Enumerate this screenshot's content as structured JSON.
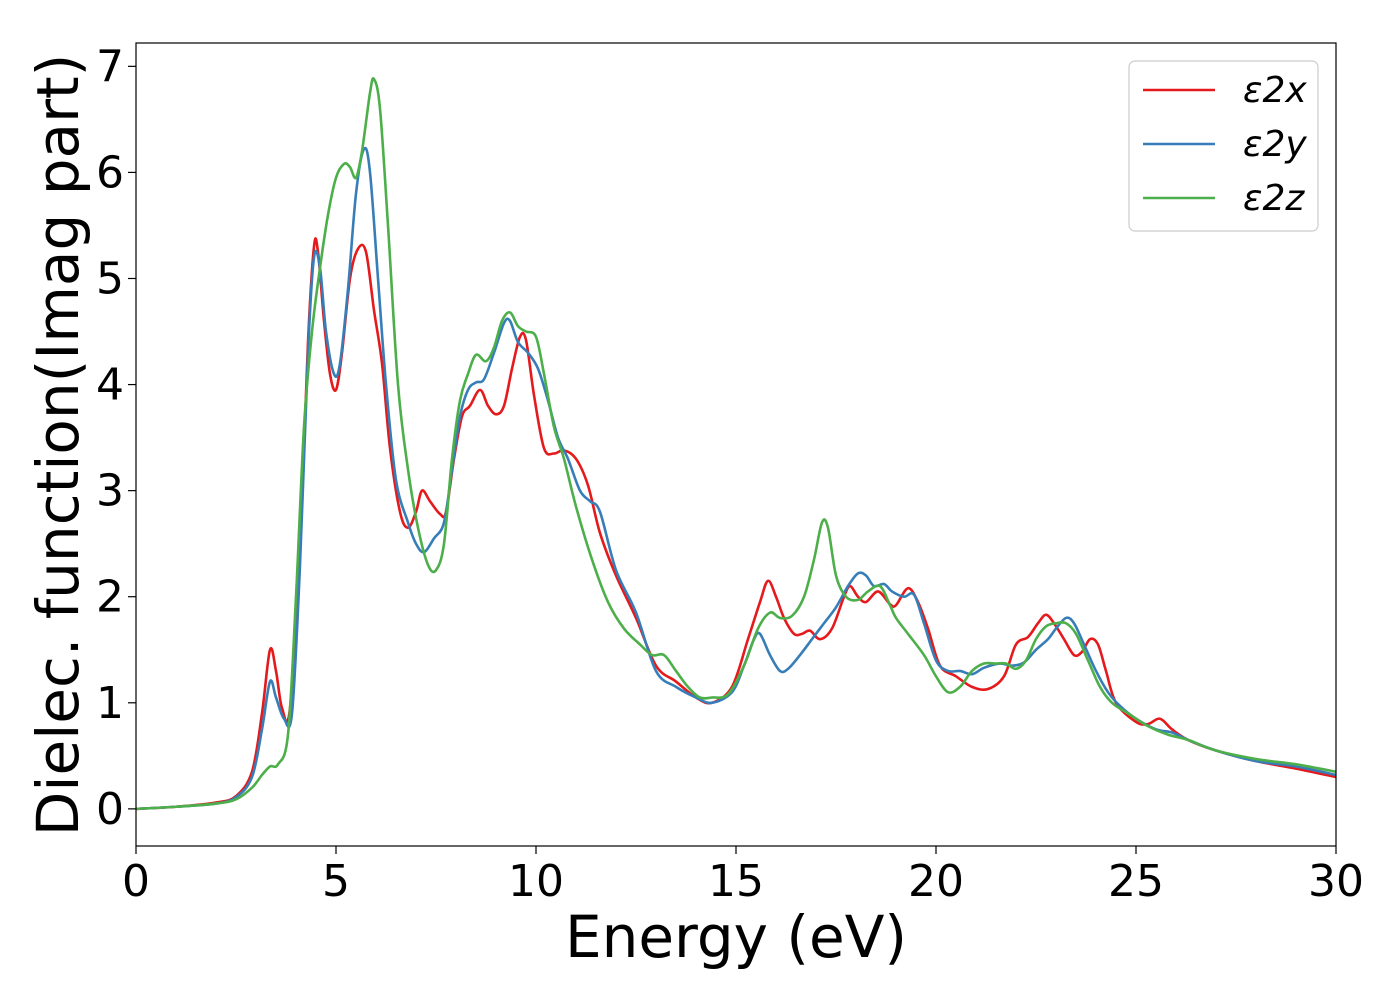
{
  "chart_data": {
    "type": "line",
    "title": "",
    "xlabel": "Energy (eV)",
    "ylabel": "Dielec. function(Imag part)",
    "xlim": [
      0,
      30
    ],
    "ylim": [
      -0.35,
      7.22
    ],
    "xticks": [
      "0",
      "5",
      "10",
      "15",
      "20",
      "25",
      "30"
    ],
    "yticks": [
      "0",
      "1",
      "2",
      "3",
      "4",
      "5",
      "6",
      "7"
    ],
    "grid": false,
    "legend_position": "top-right",
    "series": [
      {
        "name": "ε2x",
        "color": "#e41a1c",
        "points": [
          [
            0,
            0.0
          ],
          [
            1,
            0.02
          ],
          [
            2,
            0.06
          ],
          [
            2.5,
            0.12
          ],
          [
            2.9,
            0.35
          ],
          [
            3.15,
            0.9
          ],
          [
            3.35,
            1.5
          ],
          [
            3.5,
            1.3
          ],
          [
            3.65,
            0.95
          ],
          [
            3.85,
            0.95
          ],
          [
            4.1,
            2.5
          ],
          [
            4.3,
            4.4
          ],
          [
            4.45,
            5.3
          ],
          [
            4.55,
            5.25
          ],
          [
            4.7,
            4.6
          ],
          [
            4.85,
            4.1
          ],
          [
            5.0,
            3.95
          ],
          [
            5.15,
            4.3
          ],
          [
            5.35,
            5.0
          ],
          [
            5.55,
            5.28
          ],
          [
            5.75,
            5.25
          ],
          [
            5.95,
            4.7
          ],
          [
            6.15,
            4.2
          ],
          [
            6.35,
            3.4
          ],
          [
            6.6,
            2.8
          ],
          [
            6.8,
            2.65
          ],
          [
            7.0,
            2.8
          ],
          [
            7.15,
            3.0
          ],
          [
            7.35,
            2.9
          ],
          [
            7.6,
            2.78
          ],
          [
            7.75,
            2.8
          ],
          [
            7.95,
            3.3
          ],
          [
            8.15,
            3.7
          ],
          [
            8.35,
            3.8
          ],
          [
            8.6,
            3.95
          ],
          [
            8.8,
            3.8
          ],
          [
            9.0,
            3.72
          ],
          [
            9.2,
            3.8
          ],
          [
            9.4,
            4.15
          ],
          [
            9.6,
            4.45
          ],
          [
            9.75,
            4.42
          ],
          [
            9.95,
            3.9
          ],
          [
            10.2,
            3.4
          ],
          [
            10.45,
            3.35
          ],
          [
            10.7,
            3.38
          ],
          [
            11.0,
            3.3
          ],
          [
            11.3,
            3.05
          ],
          [
            11.6,
            2.6
          ],
          [
            12.0,
            2.2
          ],
          [
            12.5,
            1.8
          ],
          [
            13.0,
            1.35
          ],
          [
            13.5,
            1.2
          ],
          [
            14.0,
            1.05
          ],
          [
            14.4,
            1.0
          ],
          [
            14.9,
            1.15
          ],
          [
            15.3,
            1.6
          ],
          [
            15.6,
            1.95
          ],
          [
            15.8,
            2.15
          ],
          [
            16.0,
            2.0
          ],
          [
            16.2,
            1.8
          ],
          [
            16.45,
            1.65
          ],
          [
            16.65,
            1.65
          ],
          [
            16.85,
            1.68
          ],
          [
            17.1,
            1.6
          ],
          [
            17.4,
            1.7
          ],
          [
            17.7,
            2.0
          ],
          [
            17.85,
            2.1
          ],
          [
            18.05,
            2.0
          ],
          [
            18.25,
            1.95
          ],
          [
            18.55,
            2.05
          ],
          [
            18.85,
            1.93
          ],
          [
            19.0,
            1.92
          ],
          [
            19.3,
            2.08
          ],
          [
            19.55,
            1.95
          ],
          [
            19.8,
            1.7
          ],
          [
            20.1,
            1.35
          ],
          [
            20.5,
            1.25
          ],
          [
            20.9,
            1.15
          ],
          [
            21.3,
            1.13
          ],
          [
            21.7,
            1.25
          ],
          [
            22.0,
            1.55
          ],
          [
            22.3,
            1.62
          ],
          [
            22.55,
            1.75
          ],
          [
            22.75,
            1.83
          ],
          [
            22.95,
            1.75
          ],
          [
            23.2,
            1.6
          ],
          [
            23.45,
            1.45
          ],
          [
            23.65,
            1.48
          ],
          [
            23.85,
            1.6
          ],
          [
            24.05,
            1.55
          ],
          [
            24.25,
            1.3
          ],
          [
            24.5,
            1.0
          ],
          [
            25.0,
            0.82
          ],
          [
            25.3,
            0.8
          ],
          [
            25.6,
            0.85
          ],
          [
            25.9,
            0.75
          ],
          [
            26.3,
            0.65
          ],
          [
            27.0,
            0.55
          ],
          [
            28.0,
            0.45
          ],
          [
            29.0,
            0.38
          ],
          [
            30.0,
            0.3
          ]
        ]
      },
      {
        "name": "ε2y",
        "color": "#377eb8",
        "points": [
          [
            0,
            0.0
          ],
          [
            1,
            0.02
          ],
          [
            2,
            0.05
          ],
          [
            2.5,
            0.11
          ],
          [
            2.9,
            0.3
          ],
          [
            3.15,
            0.75
          ],
          [
            3.35,
            1.2
          ],
          [
            3.5,
            1.05
          ],
          [
            3.7,
            0.85
          ],
          [
            3.9,
            0.9
          ],
          [
            4.1,
            2.3
          ],
          [
            4.3,
            4.3
          ],
          [
            4.45,
            5.2
          ],
          [
            4.6,
            5.1
          ],
          [
            4.75,
            4.5
          ],
          [
            4.95,
            4.1
          ],
          [
            5.1,
            4.2
          ],
          [
            5.3,
            4.9
          ],
          [
            5.5,
            5.8
          ],
          [
            5.7,
            6.22
          ],
          [
            5.85,
            6.0
          ],
          [
            6.05,
            5.0
          ],
          [
            6.25,
            4.0
          ],
          [
            6.5,
            3.1
          ],
          [
            6.8,
            2.7
          ],
          [
            7.0,
            2.5
          ],
          [
            7.2,
            2.42
          ],
          [
            7.45,
            2.55
          ],
          [
            7.7,
            2.7
          ],
          [
            7.9,
            3.2
          ],
          [
            8.1,
            3.7
          ],
          [
            8.3,
            3.95
          ],
          [
            8.5,
            4.02
          ],
          [
            8.7,
            4.05
          ],
          [
            8.95,
            4.3
          ],
          [
            9.2,
            4.58
          ],
          [
            9.35,
            4.6
          ],
          [
            9.55,
            4.4
          ],
          [
            9.8,
            4.3
          ],
          [
            10.05,
            4.15
          ],
          [
            10.3,
            3.85
          ],
          [
            10.55,
            3.5
          ],
          [
            10.8,
            3.3
          ],
          [
            11.1,
            3.0
          ],
          [
            11.35,
            2.9
          ],
          [
            11.6,
            2.8
          ],
          [
            12.0,
            2.25
          ],
          [
            12.5,
            1.85
          ],
          [
            13.0,
            1.3
          ],
          [
            13.5,
            1.15
          ],
          [
            14.0,
            1.05
          ],
          [
            14.4,
            1.0
          ],
          [
            14.9,
            1.1
          ],
          [
            15.2,
            1.35
          ],
          [
            15.45,
            1.6
          ],
          [
            15.6,
            1.65
          ],
          [
            15.85,
            1.45
          ],
          [
            16.1,
            1.3
          ],
          [
            16.3,
            1.32
          ],
          [
            16.6,
            1.45
          ],
          [
            16.9,
            1.6
          ],
          [
            17.2,
            1.75
          ],
          [
            17.5,
            1.9
          ],
          [
            17.8,
            2.1
          ],
          [
            18.05,
            2.22
          ],
          [
            18.25,
            2.2
          ],
          [
            18.45,
            2.1
          ],
          [
            18.7,
            2.12
          ],
          [
            18.9,
            2.05
          ],
          [
            19.2,
            2.0
          ],
          [
            19.45,
            2.02
          ],
          [
            19.7,
            1.75
          ],
          [
            20.0,
            1.4
          ],
          [
            20.3,
            1.3
          ],
          [
            20.6,
            1.3
          ],
          [
            20.9,
            1.27
          ],
          [
            21.2,
            1.33
          ],
          [
            21.6,
            1.37
          ],
          [
            21.9,
            1.35
          ],
          [
            22.2,
            1.38
          ],
          [
            22.5,
            1.5
          ],
          [
            22.8,
            1.6
          ],
          [
            23.0,
            1.7
          ],
          [
            23.25,
            1.8
          ],
          [
            23.45,
            1.75
          ],
          [
            23.7,
            1.55
          ],
          [
            24.0,
            1.3
          ],
          [
            24.3,
            1.1
          ],
          [
            24.6,
            0.97
          ],
          [
            25.0,
            0.85
          ],
          [
            25.5,
            0.75
          ],
          [
            25.9,
            0.72
          ],
          [
            26.3,
            0.65
          ],
          [
            27.0,
            0.55
          ],
          [
            28.0,
            0.45
          ],
          [
            29.0,
            0.4
          ],
          [
            30.0,
            0.32
          ]
        ]
      },
      {
        "name": "ε2z",
        "color": "#4daf4a",
        "points": [
          [
            0,
            0.0
          ],
          [
            1,
            0.02
          ],
          [
            2,
            0.05
          ],
          [
            2.5,
            0.09
          ],
          [
            2.9,
            0.2
          ],
          [
            3.15,
            0.32
          ],
          [
            3.35,
            0.4
          ],
          [
            3.55,
            0.42
          ],
          [
            3.8,
            0.7
          ],
          [
            4.0,
            2.0
          ],
          [
            4.2,
            3.6
          ],
          [
            4.4,
            4.5
          ],
          [
            4.6,
            5.1
          ],
          [
            4.8,
            5.6
          ],
          [
            5.0,
            5.95
          ],
          [
            5.2,
            6.08
          ],
          [
            5.35,
            6.05
          ],
          [
            5.5,
            5.95
          ],
          [
            5.65,
            6.2
          ],
          [
            5.85,
            6.75
          ],
          [
            5.95,
            6.88
          ],
          [
            6.1,
            6.6
          ],
          [
            6.3,
            5.5
          ],
          [
            6.55,
            4.0
          ],
          [
            6.8,
            3.2
          ],
          [
            7.05,
            2.65
          ],
          [
            7.3,
            2.3
          ],
          [
            7.5,
            2.25
          ],
          [
            7.7,
            2.5
          ],
          [
            7.9,
            3.3
          ],
          [
            8.1,
            3.85
          ],
          [
            8.3,
            4.1
          ],
          [
            8.5,
            4.28
          ],
          [
            8.75,
            4.22
          ],
          [
            8.95,
            4.35
          ],
          [
            9.15,
            4.6
          ],
          [
            9.35,
            4.68
          ],
          [
            9.55,
            4.55
          ],
          [
            9.75,
            4.5
          ],
          [
            10.0,
            4.45
          ],
          [
            10.2,
            4.1
          ],
          [
            10.45,
            3.6
          ],
          [
            10.7,
            3.3
          ],
          [
            11.0,
            2.85
          ],
          [
            11.4,
            2.35
          ],
          [
            11.8,
            1.95
          ],
          [
            12.2,
            1.7
          ],
          [
            12.6,
            1.55
          ],
          [
            12.9,
            1.45
          ],
          [
            13.2,
            1.45
          ],
          [
            13.5,
            1.3
          ],
          [
            13.8,
            1.15
          ],
          [
            14.1,
            1.05
          ],
          [
            14.4,
            1.05
          ],
          [
            14.8,
            1.08
          ],
          [
            15.2,
            1.35
          ],
          [
            15.55,
            1.7
          ],
          [
            15.85,
            1.85
          ],
          [
            16.1,
            1.8
          ],
          [
            16.4,
            1.82
          ],
          [
            16.7,
            2.0
          ],
          [
            16.95,
            2.35
          ],
          [
            17.15,
            2.7
          ],
          [
            17.3,
            2.65
          ],
          [
            17.5,
            2.2
          ],
          [
            17.75,
            2.0
          ],
          [
            18.05,
            1.97
          ],
          [
            18.3,
            2.05
          ],
          [
            18.6,
            2.1
          ],
          [
            18.85,
            1.92
          ],
          [
            19.0,
            1.8
          ],
          [
            19.3,
            1.65
          ],
          [
            19.7,
            1.45
          ],
          [
            20.0,
            1.25
          ],
          [
            20.3,
            1.1
          ],
          [
            20.6,
            1.15
          ],
          [
            20.9,
            1.3
          ],
          [
            21.2,
            1.37
          ],
          [
            21.5,
            1.37
          ],
          [
            21.75,
            1.37
          ],
          [
            22.0,
            1.32
          ],
          [
            22.25,
            1.4
          ],
          [
            22.5,
            1.6
          ],
          [
            22.75,
            1.72
          ],
          [
            23.0,
            1.75
          ],
          [
            23.25,
            1.75
          ],
          [
            23.5,
            1.65
          ],
          [
            23.8,
            1.4
          ],
          [
            24.1,
            1.15
          ],
          [
            24.4,
            1.0
          ],
          [
            24.8,
            0.9
          ],
          [
            25.3,
            0.78
          ],
          [
            25.8,
            0.7
          ],
          [
            26.3,
            0.65
          ],
          [
            27.0,
            0.55
          ],
          [
            28.0,
            0.47
          ],
          [
            29.0,
            0.42
          ],
          [
            30.0,
            0.35
          ]
        ]
      }
    ]
  }
}
